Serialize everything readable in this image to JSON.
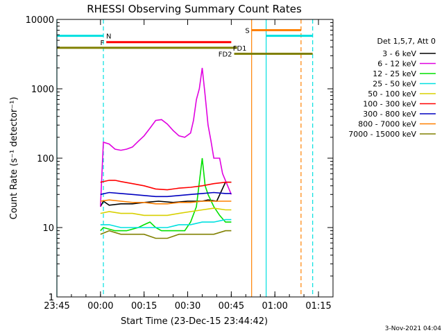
{
  "chart_data": {
    "type": "line",
    "title": "RHESSI Observing Summary Count Rates",
    "xlabel": "Start Time (23-Dec-15 23:44:42)",
    "ylabel": "Count Rate (s⁻¹ detector⁻¹)",
    "y_scale": "log",
    "ylim": [
      1,
      10000
    ],
    "xlim_minutes": [
      0,
      95
    ],
    "x_tick_labels": [
      "23:45",
      "00:00",
      "00:15",
      "00:30",
      "00:45",
      "01:00",
      "01:15"
    ],
    "x_tick_minutes": [
      0,
      15,
      30,
      45,
      60,
      75,
      90
    ],
    "y_ticks": [
      1,
      10,
      100,
      1000,
      10000
    ],
    "y_tick_labels": [
      "1",
      "10",
      "100",
      "1000",
      "10000"
    ],
    "legend_header": "Det 1,5,7, Att 0",
    "legend_position": "right",
    "series": [
      {
        "name": "3 - 6 keV",
        "color": "#000000",
        "points": [
          [
            15,
            20
          ],
          [
            16,
            24
          ],
          [
            18,
            21
          ],
          [
            22,
            22
          ],
          [
            26,
            22
          ],
          [
            30,
            23
          ],
          [
            35,
            24
          ],
          [
            40,
            23
          ],
          [
            45,
            24
          ],
          [
            50,
            24
          ],
          [
            52,
            25
          ],
          [
            55,
            24
          ],
          [
            58,
            45
          ],
          [
            60,
            45
          ]
        ]
      },
      {
        "name": "6 - 12 keV",
        "color": "#e000e0",
        "points": [
          [
            15,
            20
          ],
          [
            16,
            170
          ],
          [
            18,
            160
          ],
          [
            20,
            135
          ],
          [
            22,
            130
          ],
          [
            24,
            135
          ],
          [
            26,
            145
          ],
          [
            28,
            175
          ],
          [
            30,
            210
          ],
          [
            32,
            270
          ],
          [
            34,
            350
          ],
          [
            36,
            360
          ],
          [
            38,
            310
          ],
          [
            40,
            250
          ],
          [
            42,
            210
          ],
          [
            44,
            200
          ],
          [
            46,
            230
          ],
          [
            47,
            350
          ],
          [
            48,
            700
          ],
          [
            49,
            1000
          ],
          [
            50,
            2000
          ],
          [
            51,
            800
          ],
          [
            52,
            300
          ],
          [
            53,
            180
          ],
          [
            54,
            100
          ],
          [
            56,
            100
          ],
          [
            57,
            60
          ],
          [
            60,
            30
          ]
        ]
      },
      {
        "name": "12 - 25 keV",
        "color": "#00e000",
        "points": [
          [
            15,
            9
          ],
          [
            16,
            10
          ],
          [
            20,
            9
          ],
          [
            24,
            9
          ],
          [
            28,
            10
          ],
          [
            30,
            11
          ],
          [
            32,
            12
          ],
          [
            34,
            10
          ],
          [
            36,
            9
          ],
          [
            40,
            9
          ],
          [
            44,
            9
          ],
          [
            46,
            12
          ],
          [
            48,
            20
          ],
          [
            50,
            100
          ],
          [
            51,
            40
          ],
          [
            52,
            30
          ],
          [
            54,
            20
          ],
          [
            56,
            15
          ],
          [
            58,
            12
          ],
          [
            60,
            12
          ]
        ]
      },
      {
        "name": "25 - 50 keV",
        "color": "#00e0e0",
        "points": [
          [
            15,
            11
          ],
          [
            18,
            11
          ],
          [
            22,
            10
          ],
          [
            26,
            10
          ],
          [
            30,
            10
          ],
          [
            34,
            10
          ],
          [
            38,
            10
          ],
          [
            42,
            11
          ],
          [
            46,
            11
          ],
          [
            50,
            12
          ],
          [
            54,
            12
          ],
          [
            58,
            13
          ],
          [
            60,
            13
          ]
        ]
      },
      {
        "name": "50 - 100 keV",
        "color": "#d8d000",
        "points": [
          [
            15,
            16
          ],
          [
            18,
            17
          ],
          [
            22,
            16
          ],
          [
            26,
            16
          ],
          [
            30,
            15
          ],
          [
            34,
            15
          ],
          [
            38,
            15
          ],
          [
            42,
            16
          ],
          [
            46,
            17
          ],
          [
            50,
            18
          ],
          [
            54,
            19
          ],
          [
            58,
            18
          ],
          [
            60,
            18
          ]
        ]
      },
      {
        "name": "100 - 300 keV",
        "color": "#ff0000",
        "points": [
          [
            15,
            45
          ],
          [
            18,
            48
          ],
          [
            20,
            48
          ],
          [
            22,
            46
          ],
          [
            26,
            43
          ],
          [
            30,
            40
          ],
          [
            34,
            36
          ],
          [
            38,
            35
          ],
          [
            42,
            37
          ],
          [
            46,
            38
          ],
          [
            50,
            40
          ],
          [
            54,
            43
          ],
          [
            58,
            45
          ],
          [
            60,
            45
          ]
        ]
      },
      {
        "name": "300 - 800 keV",
        "color": "#0000c0",
        "points": [
          [
            15,
            30
          ],
          [
            18,
            32
          ],
          [
            22,
            31
          ],
          [
            26,
            30
          ],
          [
            30,
            29
          ],
          [
            34,
            28
          ],
          [
            38,
            28
          ],
          [
            42,
            29
          ],
          [
            46,
            30
          ],
          [
            50,
            31
          ],
          [
            54,
            32
          ],
          [
            58,
            31
          ],
          [
            60,
            31
          ]
        ]
      },
      {
        "name": "800 - 7000 keV",
        "color": "#ff8000",
        "points": [
          [
            15,
            24
          ],
          [
            18,
            25
          ],
          [
            22,
            24
          ],
          [
            26,
            23
          ],
          [
            30,
            23
          ],
          [
            34,
            22
          ],
          [
            38,
            22
          ],
          [
            42,
            23
          ],
          [
            46,
            23
          ],
          [
            50,
            24
          ],
          [
            54,
            24
          ],
          [
            58,
            24
          ],
          [
            60,
            24
          ]
        ]
      },
      {
        "name": "7000 - 15000 keV",
        "color": "#808000",
        "points": [
          [
            15,
            8
          ],
          [
            18,
            9
          ],
          [
            22,
            8
          ],
          [
            26,
            8
          ],
          [
            30,
            8
          ],
          [
            34,
            7
          ],
          [
            38,
            7
          ],
          [
            42,
            8
          ],
          [
            46,
            8
          ],
          [
            50,
            8
          ],
          [
            54,
            8
          ],
          [
            58,
            9
          ],
          [
            60,
            9
          ]
        ]
      }
    ],
    "flags": [
      {
        "label": "N",
        "color": "#00e0e0",
        "y": 5800,
        "segments": [
          [
            0,
            16
          ],
          [
            72,
            88
          ]
        ]
      },
      {
        "label": "F",
        "color": "#ff0000",
        "y": 4700,
        "segments": [
          [
            17,
            60
          ]
        ]
      },
      {
        "label": "S",
        "color": "#ff8000",
        "y": 7000,
        "segments": [
          [
            67,
            84
          ]
        ]
      },
      {
        "label": "FD1",
        "color": "#808000",
        "y": 3900,
        "segments": [
          [
            0,
            62
          ]
        ]
      },
      {
        "label": "FD2",
        "color": "#808000",
        "y": 3200,
        "segments": [
          [
            61,
            88
          ]
        ]
      }
    ],
    "vertical_markers": [
      {
        "minute": 0,
        "color": "#00e0e0",
        "style": "solid"
      },
      {
        "minute": 16,
        "color": "#00e0e0",
        "style": "dashed"
      },
      {
        "minute": 67,
        "color": "#ff8000",
        "style": "solid"
      },
      {
        "minute": 72,
        "color": "#00e0e0",
        "style": "solid"
      },
      {
        "minute": 84,
        "color": "#ff8000",
        "style": "dashed"
      },
      {
        "minute": 88,
        "color": "#00e0e0",
        "style": "dashed"
      }
    ]
  },
  "timestamp": "3-Nov-2021 04:04"
}
